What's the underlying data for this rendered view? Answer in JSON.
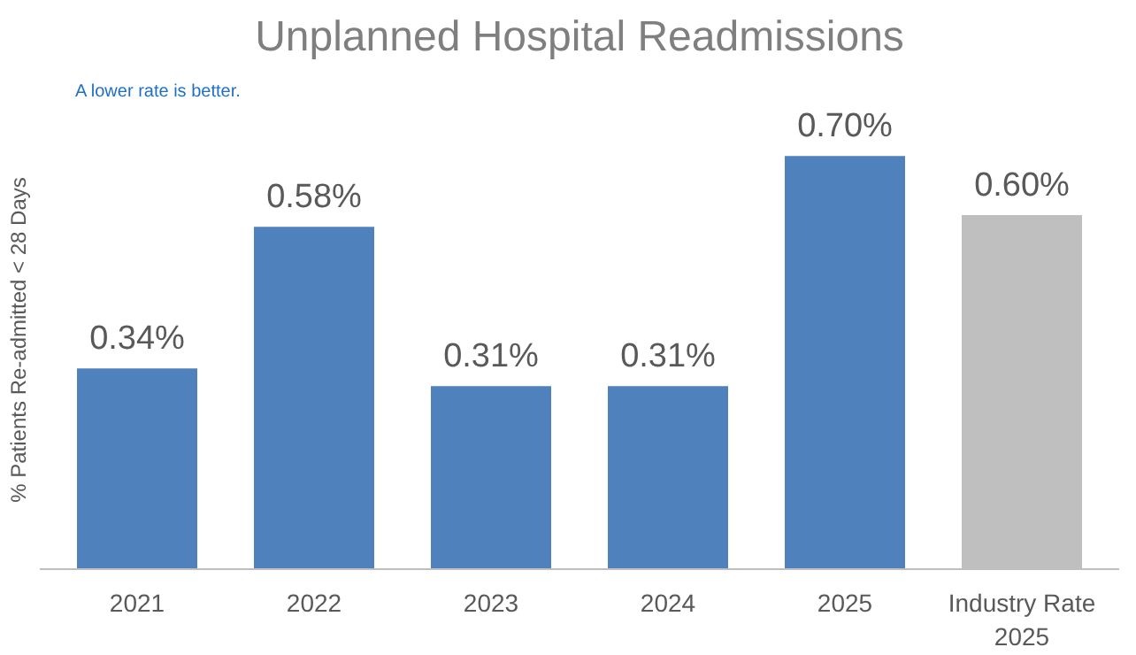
{
  "chart_data": {
    "type": "bar",
    "title": "Unplanned Hospital Readmissions",
    "ylabel": "% Patients Re-admitted < 28 Days",
    "annotations": [
      "A lower rate is better."
    ],
    "categories": [
      "2021",
      "2022",
      "2023",
      "2024",
      "2025",
      "Industry Rate\n2025"
    ],
    "values": [
      0.34,
      0.58,
      0.31,
      0.31,
      0.7,
      0.6
    ],
    "colors": [
      "#4f81bd",
      "#4f81bd",
      "#4f81bd",
      "#4f81bd",
      "#4f81bd",
      "#bfbfbf"
    ],
    "value_labels": [
      "0.34%",
      "0.58%",
      "0.31%",
      "0.31%",
      "0.70%",
      "0.60%"
    ],
    "grid": false
  }
}
